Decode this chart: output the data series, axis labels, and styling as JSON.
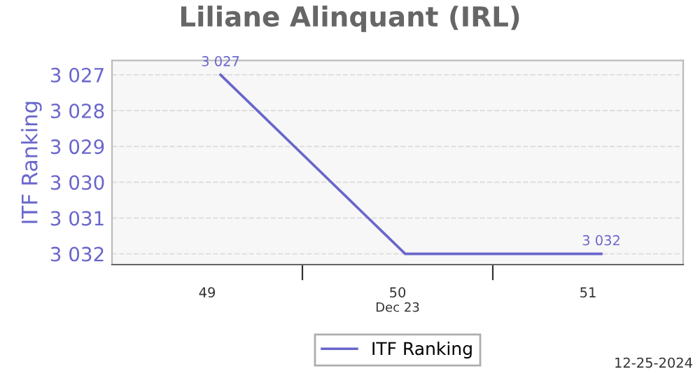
{
  "chart_data": {
    "type": "line",
    "title": "Liliane Alinquant (IRL)",
    "ylabel": "ITF Ranking",
    "xlabel": "Dec 23",
    "x": [
      49.07,
      50.04,
      51.07
    ],
    "series": [
      {
        "name": "ITF Ranking",
        "color": "#6a66cc",
        "values": [
          3027,
          3032,
          3032
        ],
        "value_labels": [
          "3 027",
          null,
          "3 032"
        ]
      }
    ],
    "xlim": [
      48.5,
      51.5
    ],
    "xticks": [
      {
        "value": 49,
        "label": "49"
      },
      {
        "value": 49.5,
        "label": null
      },
      {
        "value": 50,
        "label": "50"
      },
      {
        "value": 50.5,
        "label": null
      },
      {
        "value": 51,
        "label": "51"
      }
    ],
    "ylim": [
      3032.3,
      3026.6
    ],
    "yticks": [
      {
        "value": 3027,
        "label": "3 027"
      },
      {
        "value": 3028,
        "label": "3 028"
      },
      {
        "value": 3029,
        "label": "3 029"
      },
      {
        "value": 3030,
        "label": "3 030"
      },
      {
        "value": 3031,
        "label": "3 031"
      },
      {
        "value": 3032,
        "label": "3 032"
      }
    ],
    "grid": "y",
    "legend": "bottom",
    "marker": "none",
    "line_style": "solid",
    "annotations": [
      "12-25-2024"
    ]
  }
}
